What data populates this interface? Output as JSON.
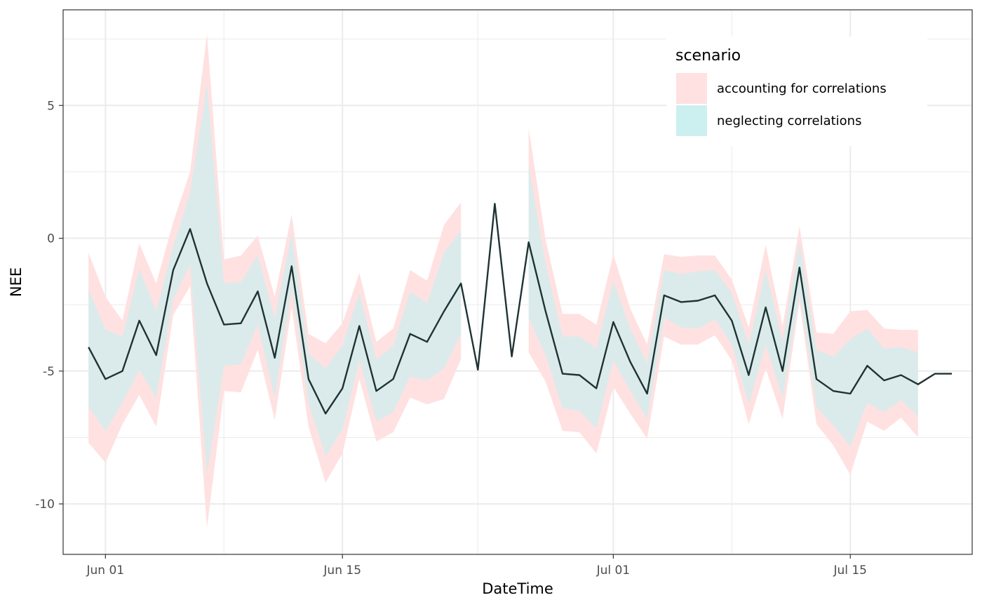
{
  "chart_data": {
    "type": "area",
    "xlabel": "DateTime",
    "ylabel": "NEE",
    "x_start": "2024-05-31",
    "x_ticks": [
      {
        "day": 1,
        "label": "Jun 01"
      },
      {
        "day": 15,
        "label": "Jun 15"
      },
      {
        "day": 31,
        "label": "Jul 01"
      },
      {
        "day": 45,
        "label": "Jul 15"
      }
    ],
    "xlim": [
      -1.5,
      52.2
    ],
    "y_ticks": [
      {
        "value": 5,
        "label": "5"
      },
      {
        "value": 0,
        "label": "0"
      },
      {
        "value": -5,
        "label": "-5"
      },
      {
        "value": -10,
        "label": "-10"
      }
    ],
    "ylim": [
      -11.9,
      8.6
    ],
    "grid": true,
    "legend": {
      "title": "scenario",
      "position": "top-right",
      "items": [
        {
          "label": "accounting for correlations",
          "color": "#FFE1E1"
        },
        {
          "label": "neglecting correlations",
          "color": "#CCF0F0"
        }
      ]
    },
    "line_color": "#1f3333",
    "series": [
      {
        "name": "NEE",
        "x": [
          0,
          1,
          2,
          3,
          4,
          5,
          6,
          7,
          8,
          9,
          10,
          11,
          12,
          13,
          14,
          15,
          16,
          17,
          18,
          19,
          20,
          21,
          22,
          23,
          24,
          25,
          26,
          27,
          28,
          29,
          30,
          31,
          32,
          33,
          34,
          35,
          36,
          37,
          38,
          39,
          40,
          41,
          42,
          43,
          44,
          45,
          46,
          47,
          48,
          49,
          50,
          51
        ],
        "values": [
          -4.1,
          -5.3,
          -5.0,
          -3.1,
          -4.4,
          -1.2,
          0.35,
          -1.7,
          -3.25,
          -3.2,
          -2.0,
          -4.5,
          -1.05,
          -5.3,
          -6.6,
          -5.65,
          -3.3,
          -5.75,
          -5.3,
          -3.6,
          -3.9,
          -2.75,
          -1.7,
          -4.95,
          1.3,
          -4.45,
          -0.15,
          -2.75,
          -5.1,
          -5.15,
          -5.65,
          -3.15,
          -4.65,
          -5.85,
          -2.15,
          -2.4,
          -2.35,
          -2.15,
          -3.1,
          -5.15,
          -2.6,
          -5.0,
          -1.1,
          -5.3,
          -5.75,
          -5.85,
          -4.8,
          -5.35,
          -5.15,
          -5.5,
          -5.1,
          -5.1
        ]
      }
    ],
    "bands": [
      {
        "name": "accounting for correlations",
        "segments": [
          {
            "x": [
              0,
              1,
              2,
              3,
              4,
              5,
              6,
              7,
              8,
              9,
              10,
              11,
              12,
              13,
              14,
              15,
              16,
              17,
              18,
              19,
              20,
              21,
              22
            ],
            "upper": [
              -0.55,
              -2.2,
              -3.1,
              -0.2,
              -1.7,
              0.6,
              2.5,
              7.7,
              -0.8,
              -0.65,
              0.1,
              -2.2,
              0.9,
              -3.6,
              -3.95,
              -3.2,
              -1.3,
              -3.9,
              -3.4,
              -1.2,
              -1.6,
              0.5,
              1.35
            ],
            "lower": [
              -7.7,
              -8.45,
              -7.0,
              -5.9,
              -7.1,
              -2.9,
              -1.8,
              -10.9,
              -5.75,
              -5.8,
              -4.2,
              -6.85,
              -2.6,
              -7.1,
              -9.2,
              -8.1,
              -5.3,
              -7.65,
              -7.3,
              -6.0,
              -6.25,
              -6.05,
              -4.55
            ]
          },
          {
            "x": [
              26,
              27,
              28,
              29,
              30,
              31,
              32,
              33,
              34,
              35,
              36,
              37,
              38,
              39,
              40,
              41,
              42,
              43,
              44,
              45,
              46,
              47,
              48,
              49
            ],
            "upper": [
              4.15,
              -0.05,
              -2.85,
              -2.85,
              -3.25,
              -0.6,
              -2.65,
              -4.0,
              -0.6,
              -0.7,
              -0.65,
              -0.65,
              -1.55,
              -3.35,
              -0.25,
              -3.3,
              0.45,
              -3.55,
              -3.6,
              -2.75,
              -2.7,
              -3.4,
              -3.45,
              -3.45
            ],
            "lower": [
              -4.3,
              -5.4,
              -7.25,
              -7.3,
              -8.1,
              -5.6,
              -6.6,
              -7.55,
              -3.7,
              -4.0,
              -4.0,
              -3.65,
              -4.6,
              -7.0,
              -4.9,
              -6.8,
              -2.4,
              -7.0,
              -7.8,
              -8.9,
              -6.9,
              -7.25,
              -6.75,
              -7.5
            ]
          }
        ]
      },
      {
        "name": "neglecting correlations",
        "segments": [
          {
            "x": [
              0,
              1,
              2,
              3,
              4,
              5,
              6,
              7,
              8,
              9,
              10,
              11,
              12,
              13,
              14,
              15,
              16,
              17,
              18,
              19,
              20,
              21,
              22
            ],
            "upper": [
              -1.9,
              -3.45,
              -3.7,
              -1.15,
              -2.75,
              -0.3,
              1.7,
              5.8,
              -1.7,
              -1.65,
              -0.65,
              -3.0,
              0.2,
              -4.35,
              -4.9,
              -4.05,
              -2.05,
              -4.55,
              -4.05,
              -2.0,
              -2.45,
              -0.55,
              0.3
            ],
            "lower": [
              -6.35,
              -7.25,
              -6.2,
              -4.95,
              -6.0,
              -2.3,
              -1.0,
              -8.9,
              -4.8,
              -4.75,
              -3.25,
              -6.0,
              -1.9,
              -6.2,
              -8.2,
              -7.2,
              -4.6,
              -6.9,
              -6.55,
              -5.2,
              -5.35,
              -4.9,
              -3.6
            ]
          },
          {
            "x": [
              26,
              27,
              28,
              29,
              30,
              31,
              32,
              33,
              34,
              35,
              36,
              37,
              38,
              39,
              40,
              41,
              42,
              43,
              44,
              45,
              46,
              47,
              48,
              49
            ],
            "upper": [
              2.75,
              -0.95,
              -3.7,
              -3.7,
              -4.15,
              -1.6,
              -3.4,
              -4.7,
              -1.2,
              -1.35,
              -1.25,
              -1.2,
              -2.05,
              -4.0,
              -1.2,
              -3.85,
              -0.15,
              -4.2,
              -4.45,
              -3.8,
              -3.4,
              -4.15,
              -4.1,
              -4.3
            ],
            "lower": [
              -3.0,
              -4.4,
              -6.4,
              -6.5,
              -7.15,
              -4.6,
              -5.75,
              -6.8,
              -3.0,
              -3.35,
              -3.4,
              -3.05,
              -4.0,
              -6.25,
              -4.0,
              -6.0,
              -2.1,
              -6.35,
              -7.05,
              -7.85,
              -6.2,
              -6.55,
              -6.1,
              -6.7
            ]
          }
        ]
      }
    ]
  }
}
